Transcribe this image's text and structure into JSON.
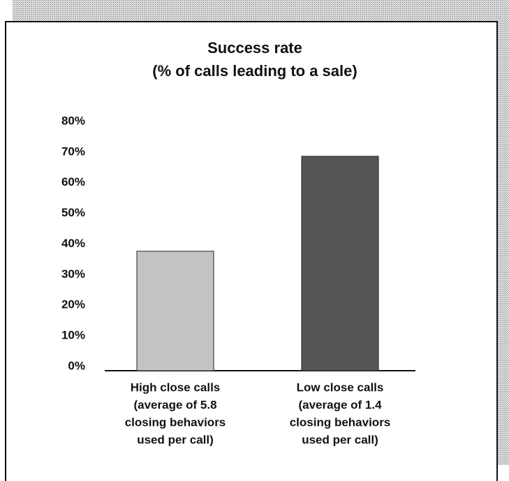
{
  "chart_data": {
    "type": "bar",
    "title": [
      "Success rate",
      "(% of calls leading to a sale)"
    ],
    "categories": [
      [
        "High close calls",
        "(average of 5.8",
        "closing behaviors",
        "used per call)"
      ],
      [
        "Low close calls",
        "(average of 1.4",
        "closing behaviors",
        "used per call)"
      ]
    ],
    "values": [
      39,
      70
    ],
    "colors": [
      "#c4c4c4",
      "#555555"
    ],
    "ylim": [
      0,
      80
    ],
    "yticks": [
      {
        "value": 0,
        "label": "0%"
      },
      {
        "value": 10,
        "label": "10%"
      },
      {
        "value": 20,
        "label": "20%"
      },
      {
        "value": 30,
        "label": "30%"
      },
      {
        "value": 40,
        "label": "40%"
      },
      {
        "value": 50,
        "label": "50%"
      },
      {
        "value": 60,
        "label": "60%"
      },
      {
        "value": 70,
        "label": "70%"
      },
      {
        "value": 80,
        "label": "80%"
      }
    ],
    "grid": false
  }
}
